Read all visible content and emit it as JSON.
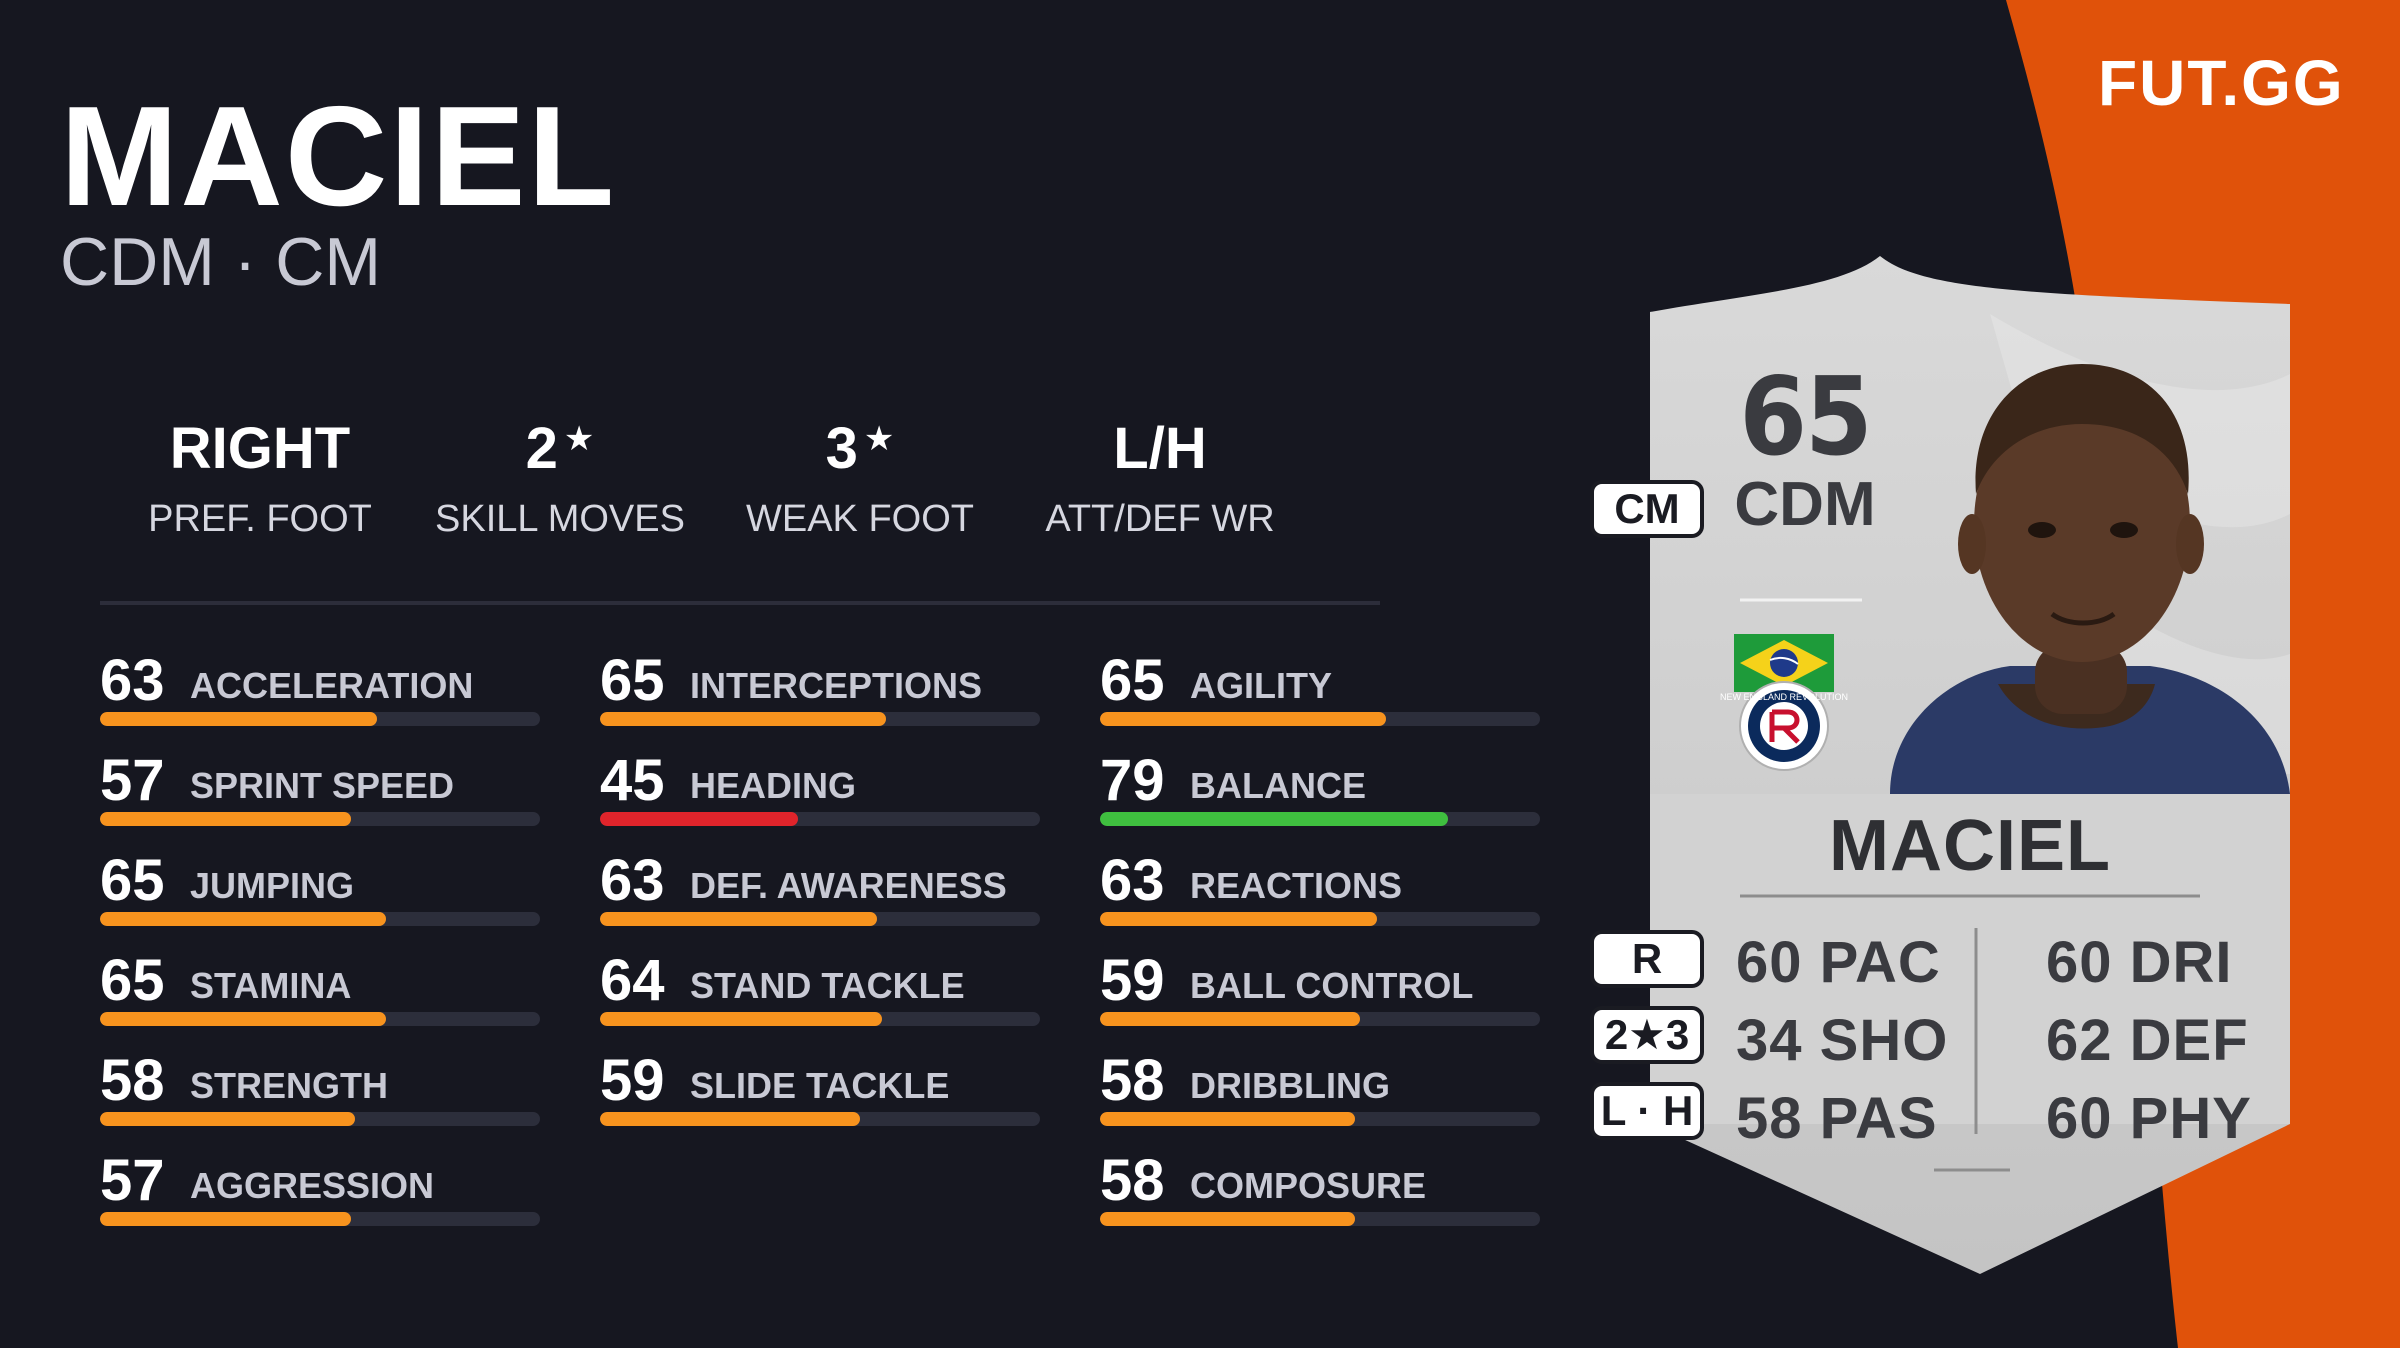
{
  "brand": {
    "logo_text": "FUT.GG",
    "accent_color": "#e0520a"
  },
  "player": {
    "name": "MACIEL",
    "positions": "CDM · CM"
  },
  "attributes": [
    {
      "value": "RIGHT",
      "star": "",
      "label": "PREF. FOOT"
    },
    {
      "value": "2",
      "star": "★",
      "label": "SKILL MOVES"
    },
    {
      "value": "3",
      "star": "★",
      "label": "WEAK FOOT"
    },
    {
      "value": "L/H",
      "star": "",
      "label": "ATT/DEF WR"
    }
  ],
  "stat_colors": {
    "average": "#f7931e",
    "low": "#e0242b",
    "high": "#3fbf3f"
  },
  "stats": {
    "column_1": [
      {
        "value": "63",
        "label": "ACCELERATION",
        "fill": 0.63,
        "tier": "average"
      },
      {
        "value": "57",
        "label": "SPRINT SPEED",
        "fill": 0.57,
        "tier": "average"
      },
      {
        "value": "65",
        "label": "JUMPING",
        "fill": 0.65,
        "tier": "average"
      },
      {
        "value": "65",
        "label": "STAMINA",
        "fill": 0.65,
        "tier": "average"
      },
      {
        "value": "58",
        "label": "STRENGTH",
        "fill": 0.58,
        "tier": "average"
      },
      {
        "value": "57",
        "label": "AGGRESSION",
        "fill": 0.57,
        "tier": "average"
      }
    ],
    "column_2": [
      {
        "value": "65",
        "label": "INTERCEPTIONS",
        "fill": 0.65,
        "tier": "average"
      },
      {
        "value": "45",
        "label": "HEADING",
        "fill": 0.45,
        "tier": "low"
      },
      {
        "value": "63",
        "label": "DEF. AWARENESS",
        "fill": 0.63,
        "tier": "average"
      },
      {
        "value": "64",
        "label": "STAND TACKLE",
        "fill": 0.64,
        "tier": "average"
      },
      {
        "value": "59",
        "label": "SLIDE TACKLE",
        "fill": 0.59,
        "tier": "average"
      }
    ],
    "column_3": [
      {
        "value": "65",
        "label": "AGILITY",
        "fill": 0.65,
        "tier": "average"
      },
      {
        "value": "79",
        "label": "BALANCE",
        "fill": 0.79,
        "tier": "high"
      },
      {
        "value": "63",
        "label": "REACTIONS",
        "fill": 0.63,
        "tier": "average"
      },
      {
        "value": "59",
        "label": "BALL CONTROL",
        "fill": 0.59,
        "tier": "average"
      },
      {
        "value": "58",
        "label": "DRIBBLING",
        "fill": 0.58,
        "tier": "average"
      },
      {
        "value": "58",
        "label": "COMPOSURE",
        "fill": 0.58,
        "tier": "average"
      }
    ]
  },
  "card": {
    "rating": "65",
    "position": "CDM",
    "alt_position": "CM",
    "name": "MACIEL",
    "nation_icon": "brazil-flag-icon",
    "club_icon": "new-england-revolution-crest-icon",
    "club_crest_text": "NEW ENGLAND REVOLUTION",
    "foot_pill": "R",
    "skill_weak_pill": "2★3",
    "work_rate_pill": "L · H",
    "face_stats_left": [
      "60 PAC",
      "34 SHO",
      "58 PAS"
    ],
    "face_stats_right": [
      "60 DRI",
      "62 DEF",
      "60 PHY"
    ]
  }
}
